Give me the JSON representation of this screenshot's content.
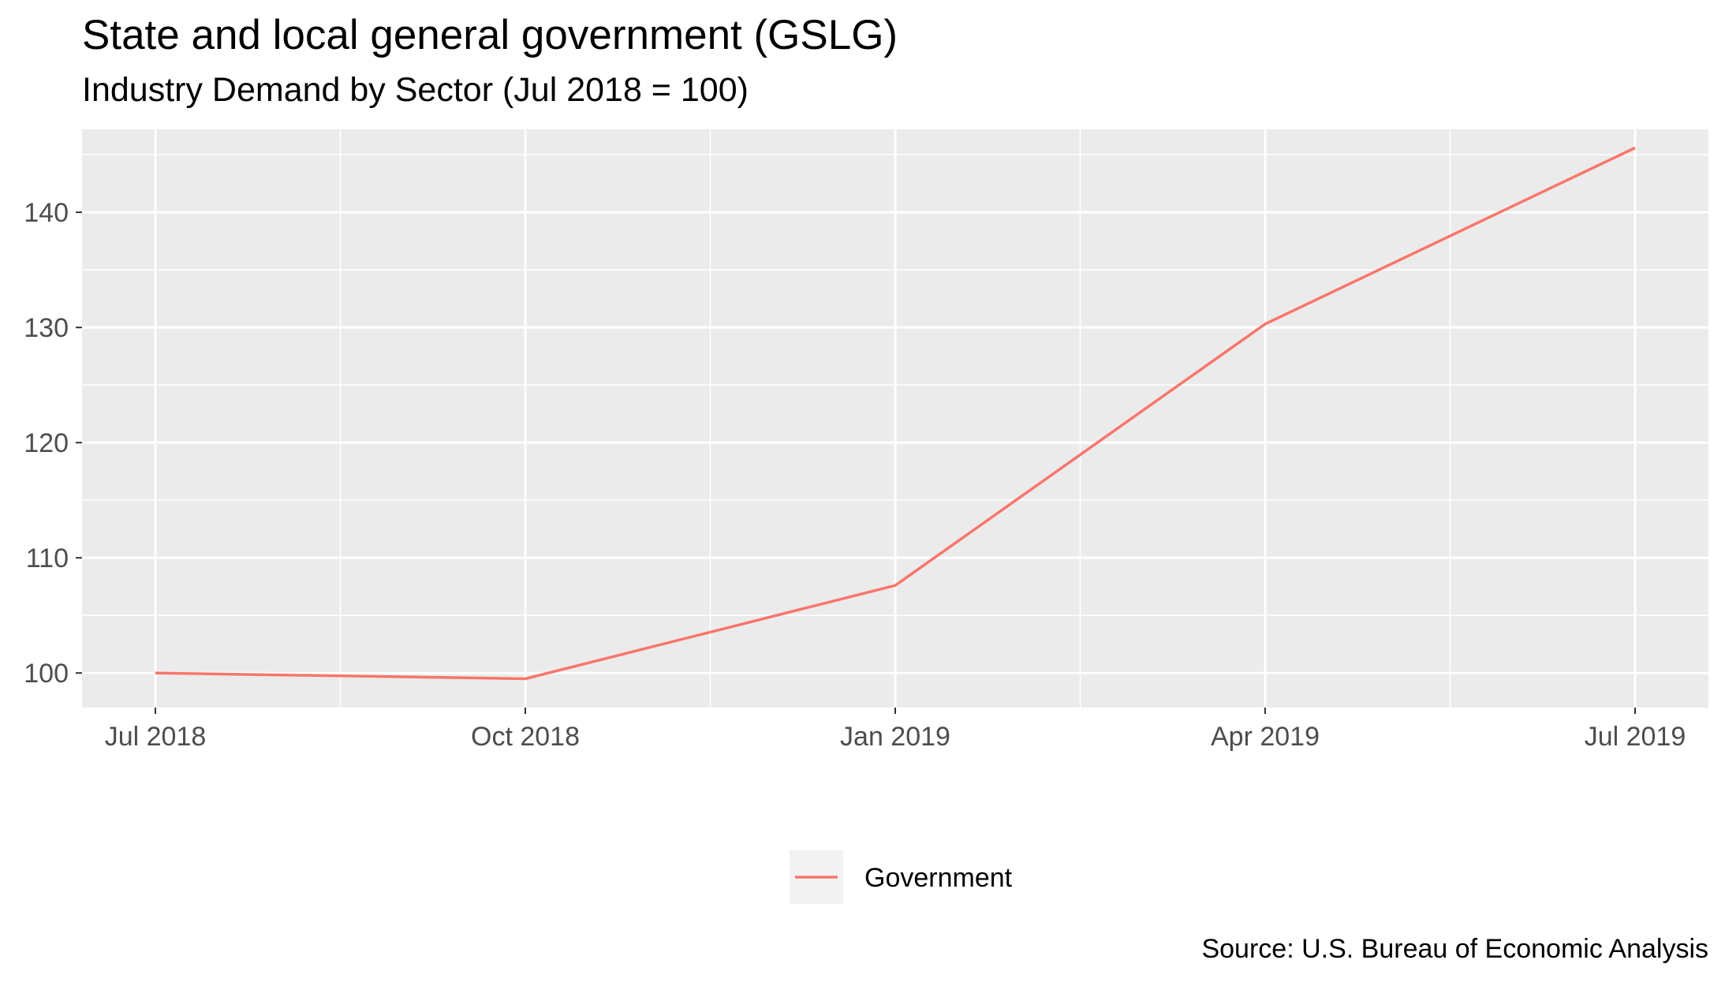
{
  "chart_data": {
    "type": "line",
    "title": "State and local general government (GSLG)",
    "subtitle": "Industry Demand by Sector (Jul 2018 = 100)",
    "xlabel": "",
    "ylabel": "",
    "caption": "Source: U.S. Bureau of Economic Analysis",
    "x": [
      "Jul 2018",
      "Oct 2018",
      "Jan 2019",
      "Apr 2019",
      "Jul 2019"
    ],
    "series": [
      {
        "name": "Government",
        "color": "#F8766D",
        "values": [
          100.0,
          99.5,
          107.6,
          130.3,
          145.6
        ]
      }
    ],
    "xticks": [
      "Jul 2018",
      "Oct 2018",
      "Jan 2019",
      "Apr 2019",
      "Jul 2019"
    ],
    "yticks": [
      100,
      110,
      120,
      130,
      140
    ],
    "ylim": [
      97,
      147.2
    ],
    "grid": true,
    "legend_position": "bottom",
    "colors": {
      "panel": "#EBEBEB",
      "grid": "#FFFFFF"
    }
  }
}
